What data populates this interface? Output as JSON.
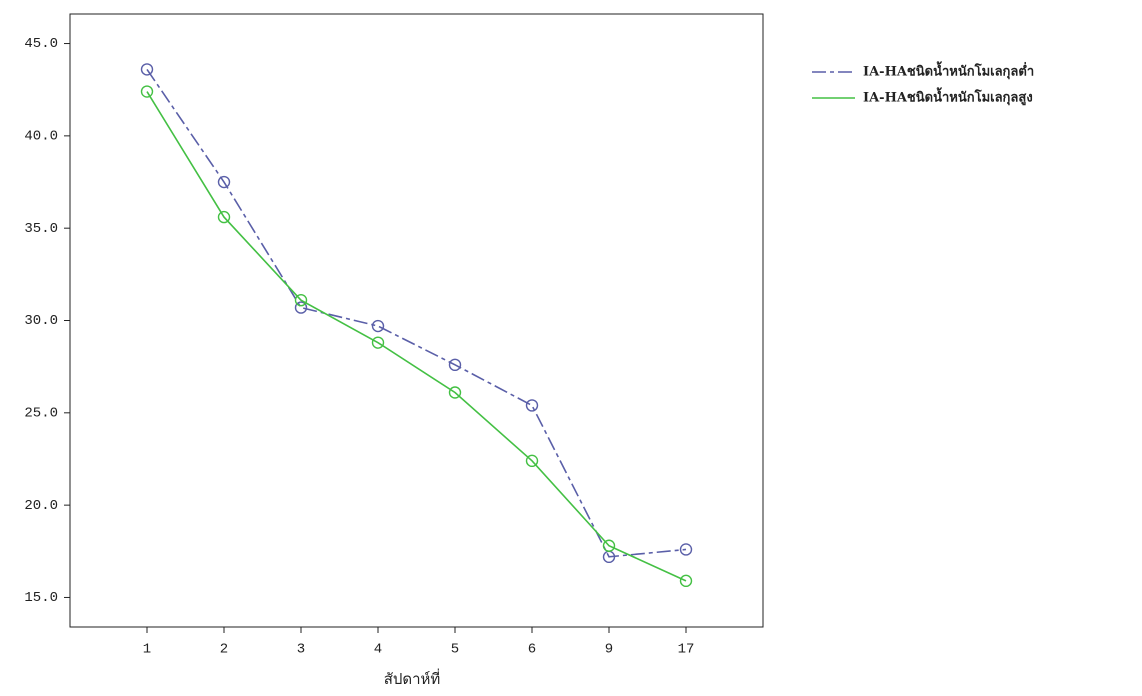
{
  "chart_data": {
    "type": "line",
    "x_label": "สัปดาห์ที่",
    "categories": [
      "1",
      "2",
      "3",
      "4",
      "5",
      "6",
      "9",
      "17"
    ],
    "series": [
      {
        "name": "IA-HAชนิดน้ำหนักโมเลกุลต่ำ",
        "color": "#5a5fa8",
        "dashed": true,
        "values": [
          43.6,
          37.5,
          30.7,
          29.7,
          27.6,
          25.4,
          17.2,
          17.6
        ]
      },
      {
        "name": "IA-HAชนิดน้ำหนักโมเลกุลสูง",
        "color": "#44c044",
        "dashed": false,
        "values": [
          42.4,
          35.6,
          31.1,
          28.8,
          26.1,
          22.4,
          17.8,
          15.9
        ]
      }
    ],
    "ylim": [
      13.4,
      46.6
    ],
    "yticks": [
      {
        "value": 15,
        "label": "15.0"
      },
      {
        "value": 20,
        "label": "20.0"
      },
      {
        "value": 25,
        "label": "25.0"
      },
      {
        "value": 30,
        "label": "30.0"
      },
      {
        "value": 35,
        "label": "35.0"
      },
      {
        "value": 40,
        "label": "40.0"
      },
      {
        "value": 45,
        "label": "45.0"
      }
    ],
    "legend": "right"
  }
}
